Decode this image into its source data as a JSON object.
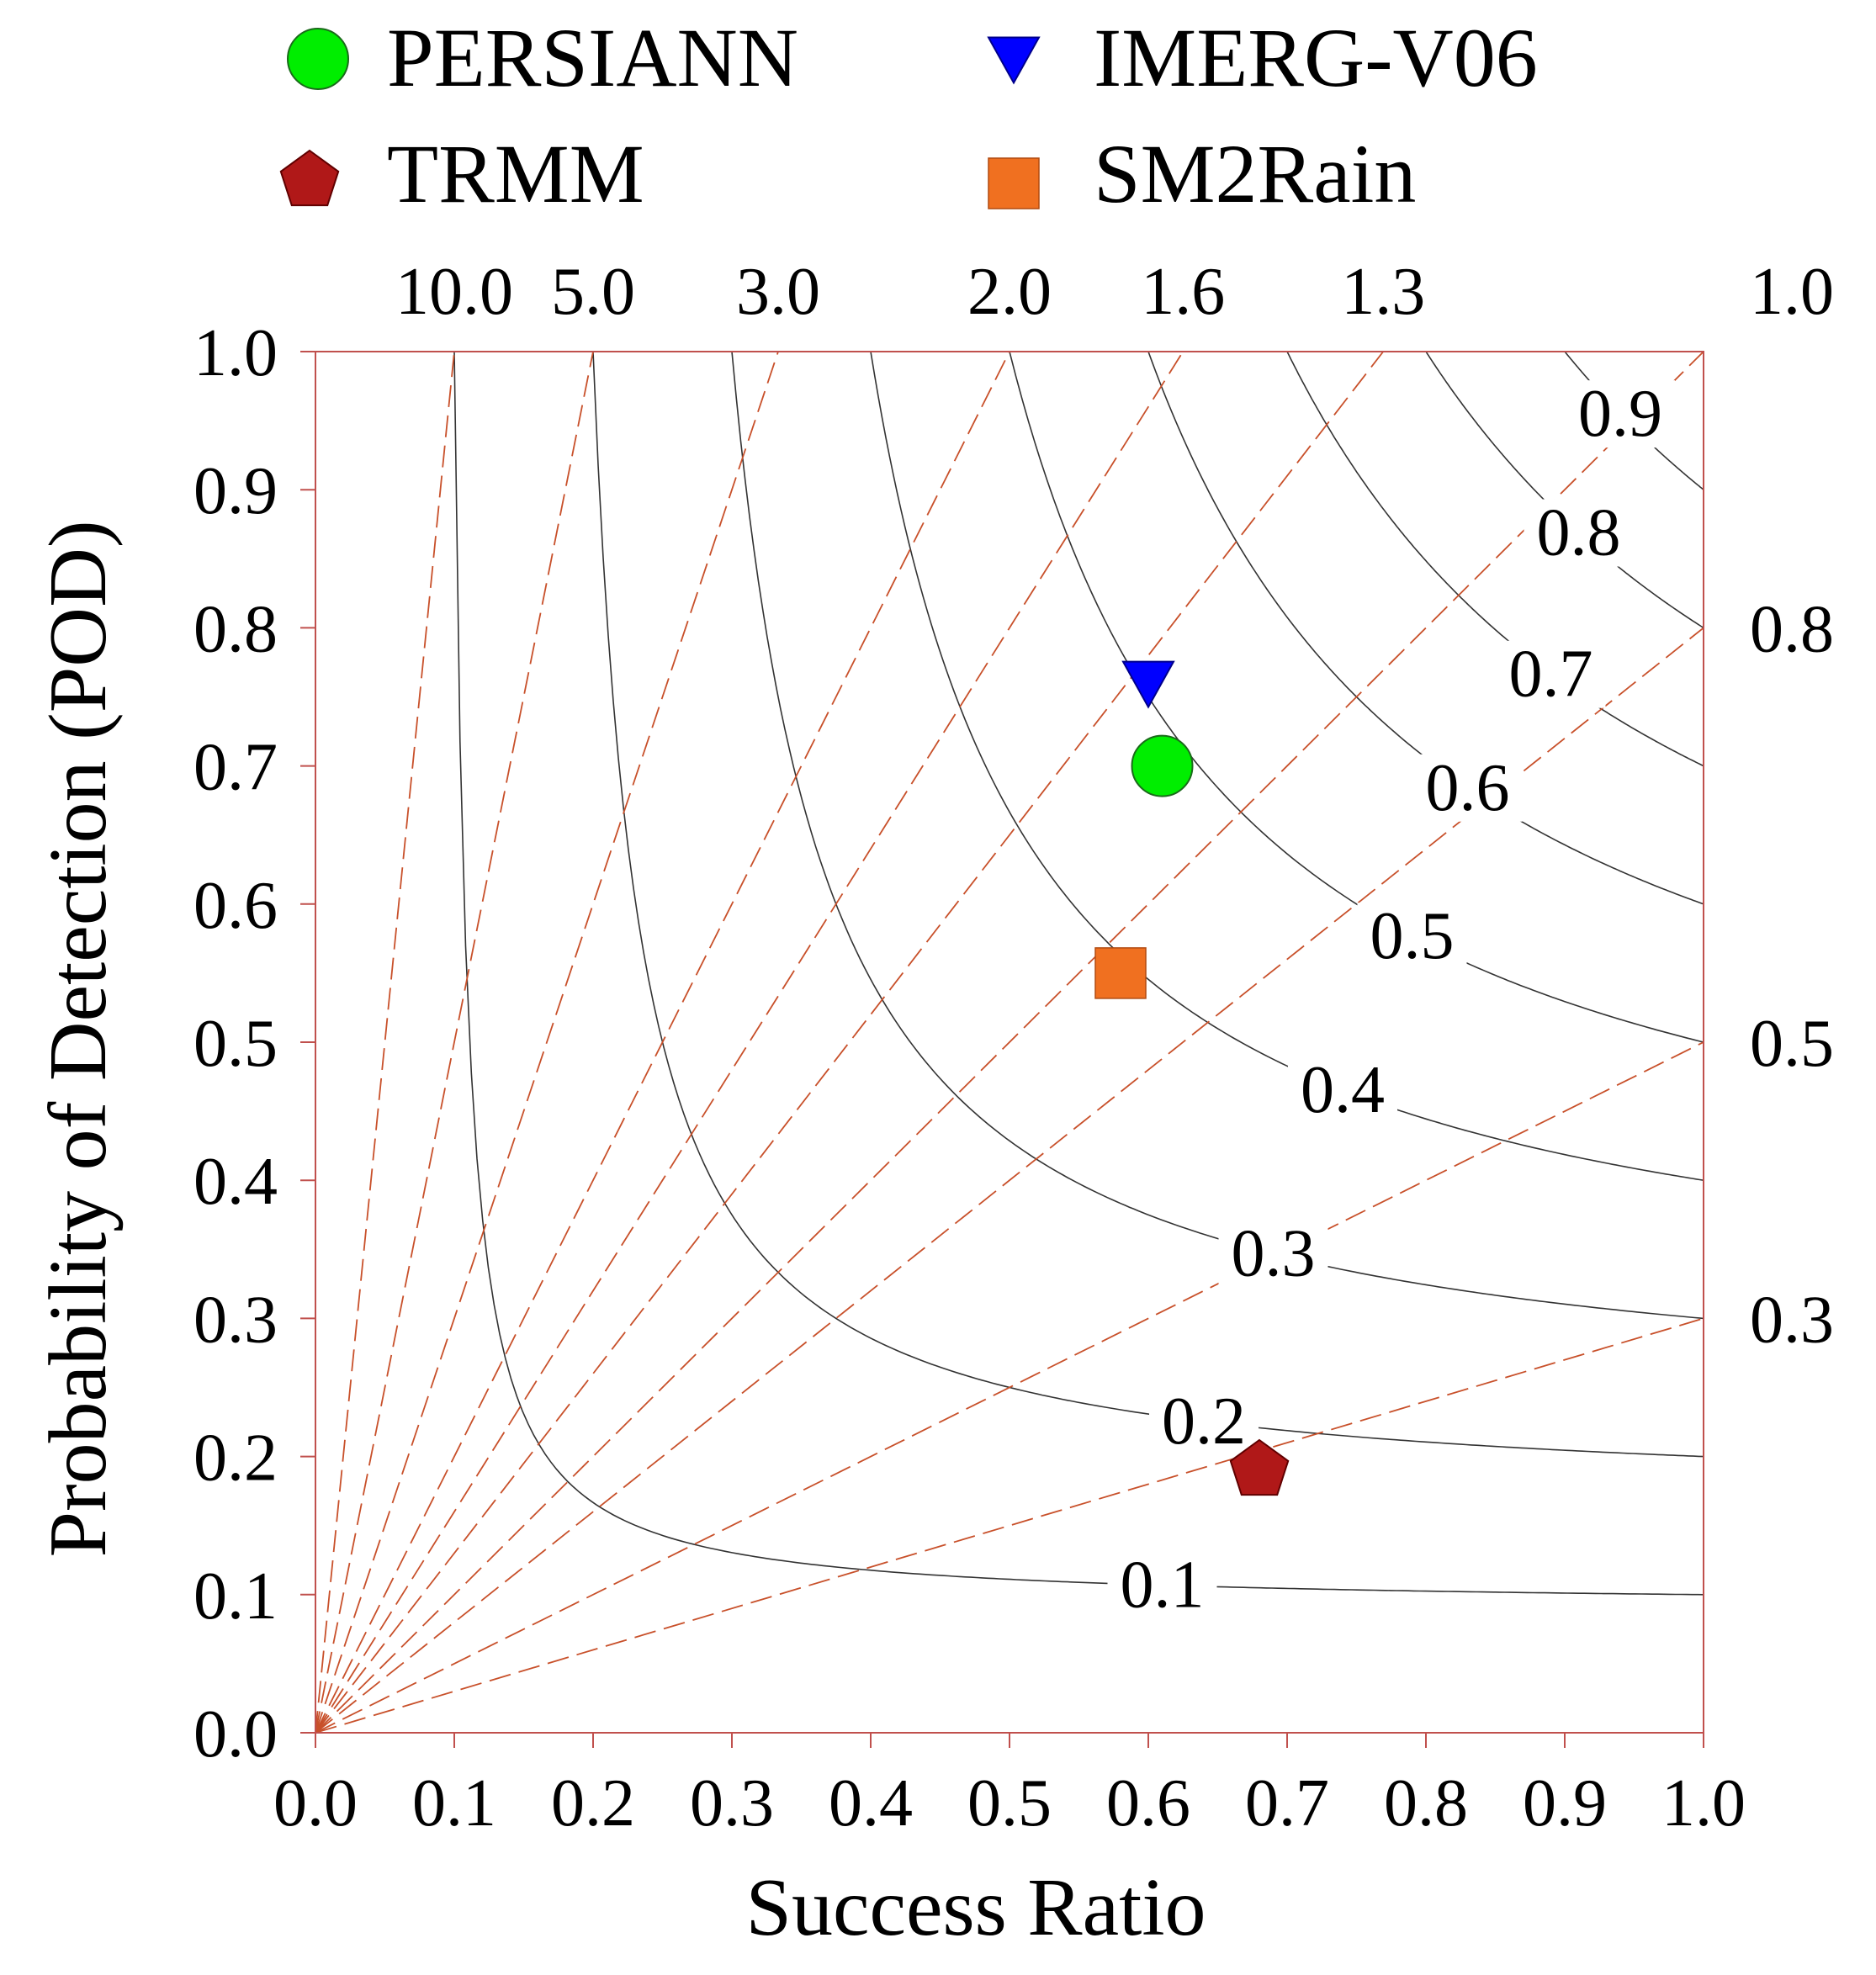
{
  "chart_data": {
    "type": "scatter",
    "subtype": "performance-diagram",
    "title": "",
    "xlabel": "Success Ratio",
    "ylabel": "Probability of Detection (POD)",
    "xlim": [
      0.0,
      1.0
    ],
    "ylim": [
      0.0,
      1.0
    ],
    "x_ticks": [
      "0.0",
      "0.1",
      "0.2",
      "0.3",
      "0.4",
      "0.5",
      "0.6",
      "0.7",
      "0.8",
      "0.9",
      "1.0"
    ],
    "y_ticks": [
      "0.0",
      "0.1",
      "0.2",
      "0.3",
      "0.4",
      "0.5",
      "0.6",
      "0.7",
      "0.8",
      "0.9",
      "1.0"
    ],
    "legend_position": "top",
    "series": [
      {
        "name": "PERSIANN",
        "marker": "circle",
        "color": "#00ee00",
        "x": 0.61,
        "y": 0.7
      },
      {
        "name": "IMERG-V06",
        "marker": "triangle-down",
        "color": "#0000ff",
        "x": 0.6,
        "y": 0.76
      },
      {
        "name": "TRMM",
        "marker": "pentagon",
        "color": "#b01818",
        "x": 0.68,
        "y": 0.19
      },
      {
        "name": "SM2Rain",
        "marker": "square",
        "color": "#f07020",
        "x": 0.58,
        "y": 0.55
      }
    ],
    "legend_order": [
      "PERSIANN",
      "IMERG-V06",
      "TRMM",
      "SM2Rain"
    ],
    "csi_lines": {
      "values": [
        0.1,
        0.2,
        0.3,
        0.4,
        0.5,
        0.6,
        0.7,
        0.8,
        0.9
      ],
      "labels": [
        "0.1",
        "0.2",
        "0.3",
        "0.4",
        "0.5",
        "0.6",
        "0.7",
        "0.8",
        "0.9"
      ],
      "label_sr": [
        0.61,
        0.64,
        0.69,
        0.74,
        0.79,
        0.83,
        0.89,
        0.91,
        0.94
      ],
      "color": "#333333"
    },
    "bias_lines": {
      "values": [
        10.0,
        5.0,
        3.0,
        2.0,
        1.6,
        1.3,
        1.0,
        0.8,
        0.5,
        0.3
      ],
      "top_labels": [
        "10.0",
        "5.0",
        "3.0",
        "2.0",
        "1.6",
        "1.3",
        "1.0"
      ],
      "right_labels": [
        "0.8",
        "0.5",
        "0.3"
      ],
      "color": "#c8502a",
      "style": "dashed"
    },
    "colors": {
      "frame": "#c0504d",
      "grid_frame": "#c0504d"
    }
  }
}
